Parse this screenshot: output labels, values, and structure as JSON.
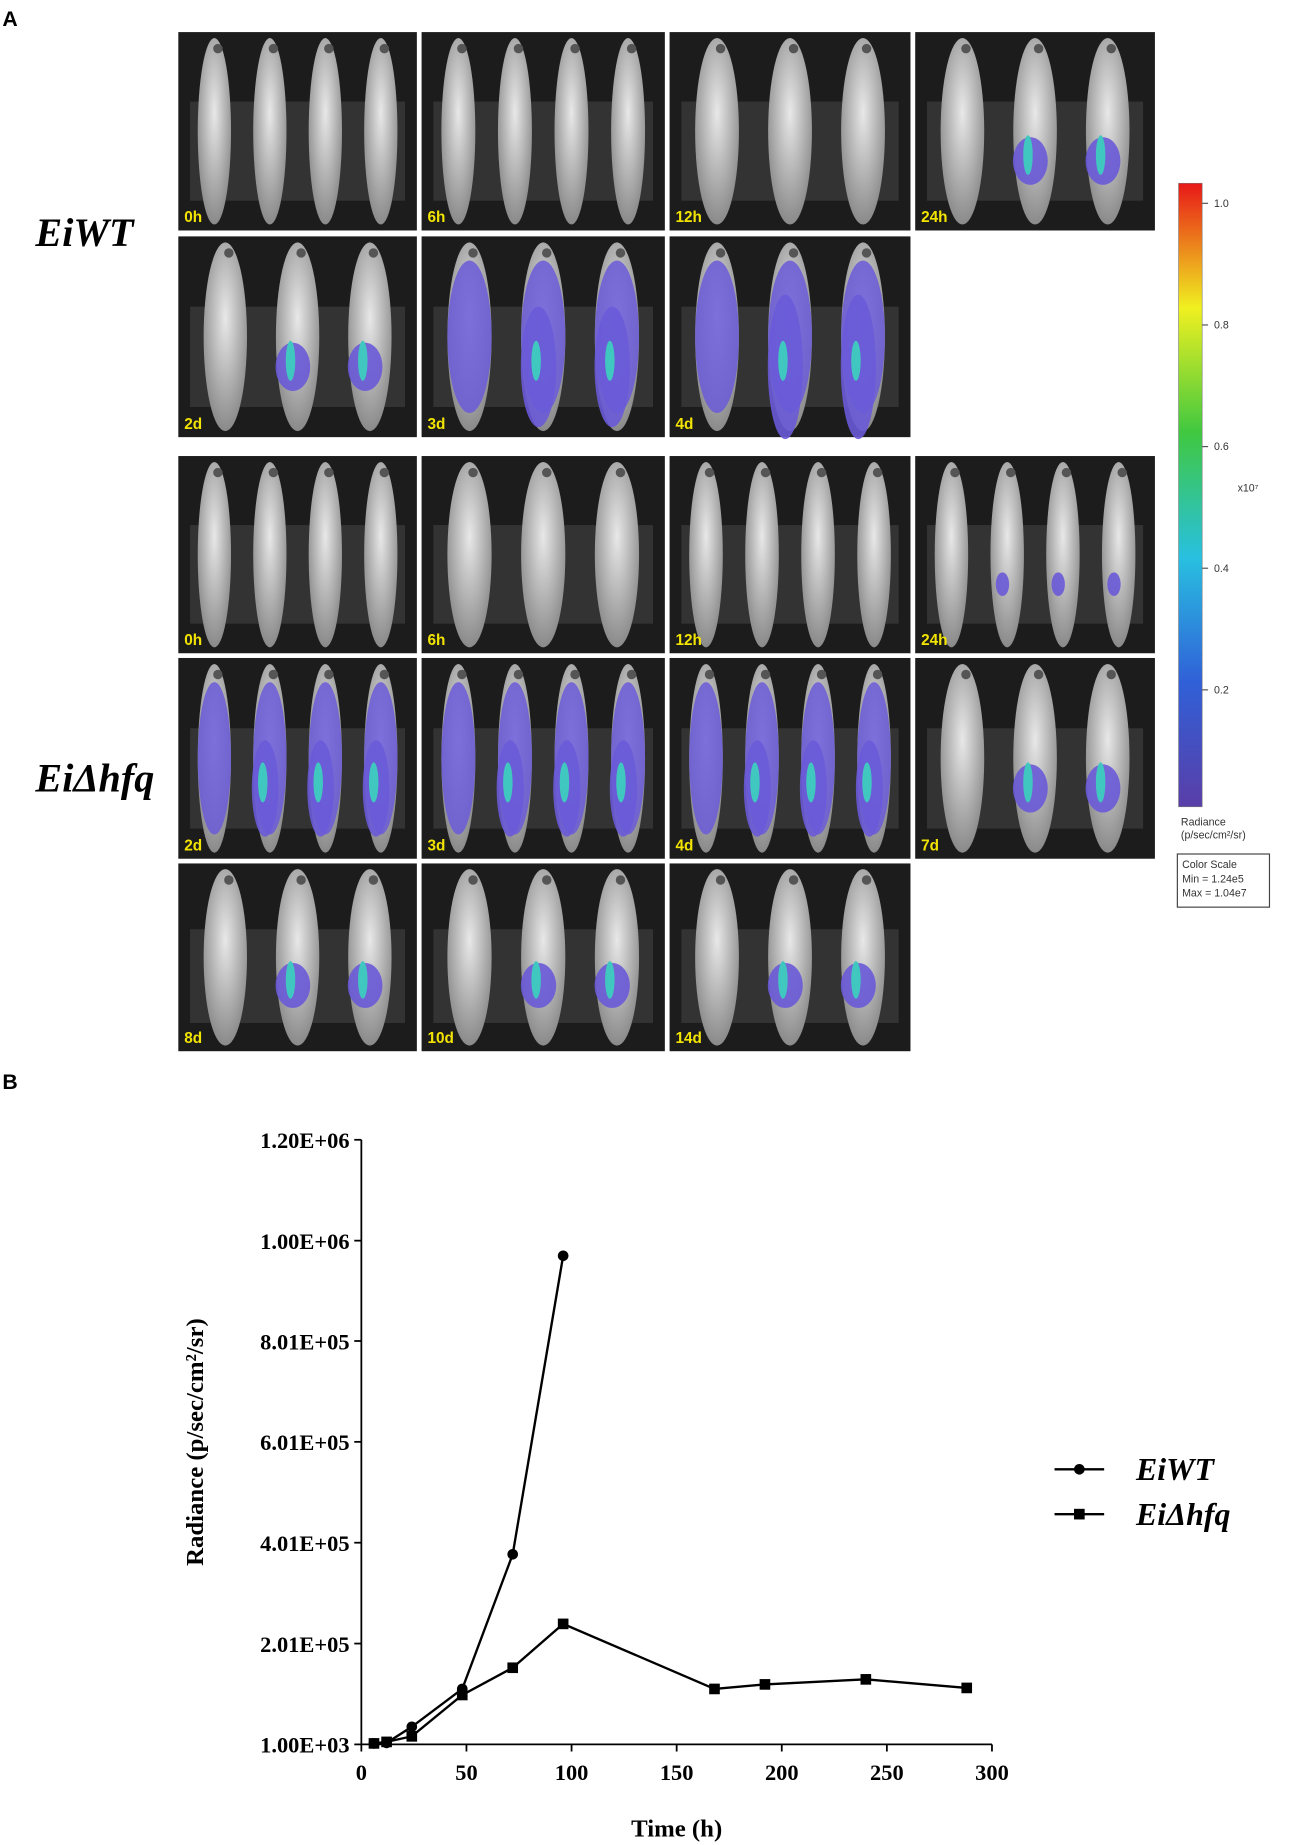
{
  "panel_labels": [
    "A",
    "B"
  ],
  "imaging": {
    "groups": [
      {
        "name": "EiWT",
        "tiles": [
          "0h",
          "6h",
          "12h",
          "24h",
          "2d",
          "3d",
          "4d"
        ]
      },
      {
        "name": "EiΔhfq",
        "tiles": [
          "0h",
          "6h",
          "12h",
          "24h",
          "2d",
          "3d",
          "4d",
          "7d",
          "8d",
          "10d",
          "14d"
        ]
      }
    ],
    "colorbar": {
      "tick_labels": [
        "1.0",
        "0.8",
        "0.6",
        "0.4",
        "0.2"
      ],
      "multiplier": "x10⁷",
      "unit_label": [
        "Radiance",
        "(p/sec/cm²/sr)"
      ],
      "scale_box": [
        "Color Scale",
        "Min = 1.24e5",
        "Max = 1.04e7"
      ]
    }
  },
  "chart_data": {
    "type": "line",
    "x_label": "Time (h)",
    "y_label": "Radiance (p/sec/cm²/sr)",
    "xlim": [
      0,
      300
    ],
    "xticks": [
      0,
      50,
      100,
      150,
      200,
      250,
      300
    ],
    "ylim": [
      1000,
      1200000
    ],
    "yticks": [
      {
        "value": 1000,
        "label": "1.00E+03"
      },
      {
        "value": 201000,
        "label": "2.01E+05"
      },
      {
        "value": 401000,
        "label": "4.01E+05"
      },
      {
        "value": 601000,
        "label": "6.01E+05"
      },
      {
        "value": 801000,
        "label": "8.01E+05"
      },
      {
        "value": 1000000,
        "label": "1.00E+06"
      },
      {
        "value": 1200000,
        "label": "1.20E+06"
      }
    ],
    "series": [
      {
        "name": "EiWT",
        "color": "#000000",
        "marker": "circle",
        "x": [
          6,
          12,
          24,
          48,
          72,
          96
        ],
        "values": [
          3000,
          4000,
          36000,
          111000,
          378000,
          970000
        ]
      },
      {
        "name": "EiΔhfq",
        "color": "#000000",
        "marker": "square",
        "x": [
          6,
          12,
          24,
          48,
          72,
          96,
          168,
          192,
          240,
          288
        ],
        "values": [
          3000,
          6000,
          17000,
          99000,
          153000,
          240000,
          111000,
          120000,
          130000,
          113000
        ]
      }
    ]
  }
}
